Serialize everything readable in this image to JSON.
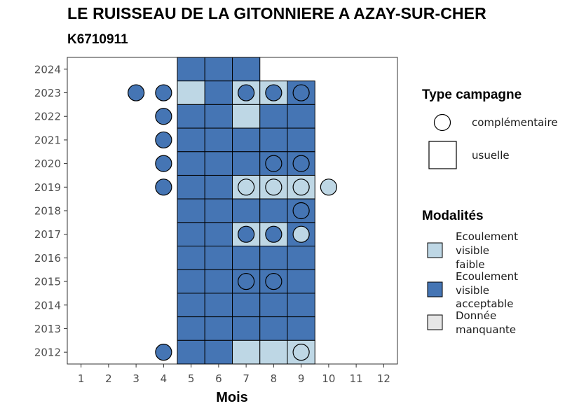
{
  "title": "LE RUISSEAU DE LA GITONNIERE A AZAY-SUR-CHER",
  "subtitle": "K6710911",
  "colors": {
    "faible": "#bed7e5",
    "acceptable": "#4575b4",
    "manquante": "#e6e6e6"
  },
  "chart_data": {
    "type": "heatmap",
    "title": "LE RUISSEAU DE LA GITONNIERE A AZAY-SUR-CHER",
    "subtitle": "K6710911",
    "xlabel": "Mois",
    "ylabel": "",
    "x_ticks": [
      "1",
      "2",
      "3",
      "4",
      "5",
      "6",
      "7",
      "8",
      "9",
      "10",
      "11",
      "12"
    ],
    "y_ticks": [
      "2012",
      "2013",
      "2014",
      "2015",
      "2016",
      "2017",
      "2018",
      "2019",
      "2020",
      "2021",
      "2022",
      "2023",
      "2024"
    ],
    "xlim": [
      0.5,
      12.5
    ],
    "ylim": [
      2011.5,
      2024.5
    ],
    "grid": false,
    "legend_position": "right",
    "legend_shape": {
      "title": "Type campagne",
      "items": [
        {
          "label": "complémentaire",
          "shape": "circle"
        },
        {
          "label": "usuelle",
          "shape": "square"
        }
      ]
    },
    "legend_color": {
      "title": "Modalités",
      "items": [
        {
          "label_lines": [
            "Ecoulement",
            "visible",
            "faible"
          ],
          "category": "faible"
        },
        {
          "label_lines": [
            "Ecoulement",
            "visible",
            "acceptable"
          ],
          "category": "acceptable"
        },
        {
          "label_lines": [
            "Donnée",
            "manquante"
          ],
          "category": "manquante"
        }
      ]
    },
    "usuelle": [
      {
        "year": 2024,
        "month": 5,
        "value": "acceptable"
      },
      {
        "year": 2024,
        "month": 6,
        "value": "acceptable"
      },
      {
        "year": 2024,
        "month": 7,
        "value": "acceptable"
      },
      {
        "year": 2023,
        "month": 5,
        "value": "faible"
      },
      {
        "year": 2023,
        "month": 6,
        "value": "acceptable"
      },
      {
        "year": 2023,
        "month": 7,
        "value": "faible"
      },
      {
        "year": 2023,
        "month": 8,
        "value": "faible"
      },
      {
        "year": 2023,
        "month": 9,
        "value": "acceptable"
      },
      {
        "year": 2022,
        "month": 5,
        "value": "acceptable"
      },
      {
        "year": 2022,
        "month": 6,
        "value": "acceptable"
      },
      {
        "year": 2022,
        "month": 7,
        "value": "faible"
      },
      {
        "year": 2022,
        "month": 8,
        "value": "acceptable"
      },
      {
        "year": 2022,
        "month": 9,
        "value": "acceptable"
      },
      {
        "year": 2021,
        "month": 5,
        "value": "acceptable"
      },
      {
        "year": 2021,
        "month": 6,
        "value": "acceptable"
      },
      {
        "year": 2021,
        "month": 7,
        "value": "acceptable"
      },
      {
        "year": 2021,
        "month": 8,
        "value": "acceptable"
      },
      {
        "year": 2021,
        "month": 9,
        "value": "acceptable"
      },
      {
        "year": 2020,
        "month": 5,
        "value": "acceptable"
      },
      {
        "year": 2020,
        "month": 6,
        "value": "acceptable"
      },
      {
        "year": 2020,
        "month": 7,
        "value": "acceptable"
      },
      {
        "year": 2020,
        "month": 8,
        "value": "acceptable"
      },
      {
        "year": 2020,
        "month": 9,
        "value": "acceptable"
      },
      {
        "year": 2019,
        "month": 5,
        "value": "acceptable"
      },
      {
        "year": 2019,
        "month": 6,
        "value": "acceptable"
      },
      {
        "year": 2019,
        "month": 7,
        "value": "faible"
      },
      {
        "year": 2019,
        "month": 8,
        "value": "faible"
      },
      {
        "year": 2019,
        "month": 9,
        "value": "faible"
      },
      {
        "year": 2018,
        "month": 5,
        "value": "acceptable"
      },
      {
        "year": 2018,
        "month": 6,
        "value": "acceptable"
      },
      {
        "year": 2018,
        "month": 7,
        "value": "acceptable"
      },
      {
        "year": 2018,
        "month": 8,
        "value": "acceptable"
      },
      {
        "year": 2018,
        "month": 9,
        "value": "acceptable"
      },
      {
        "year": 2017,
        "month": 5,
        "value": "acceptable"
      },
      {
        "year": 2017,
        "month": 6,
        "value": "acceptable"
      },
      {
        "year": 2017,
        "month": 7,
        "value": "faible"
      },
      {
        "year": 2017,
        "month": 8,
        "value": "faible"
      },
      {
        "year": 2017,
        "month": 9,
        "value": "acceptable"
      },
      {
        "year": 2016,
        "month": 5,
        "value": "acceptable"
      },
      {
        "year": 2016,
        "month": 6,
        "value": "acceptable"
      },
      {
        "year": 2016,
        "month": 7,
        "value": "acceptable"
      },
      {
        "year": 2016,
        "month": 8,
        "value": "acceptable"
      },
      {
        "year": 2016,
        "month": 9,
        "value": "acceptable"
      },
      {
        "year": 2015,
        "month": 5,
        "value": "acceptable"
      },
      {
        "year": 2015,
        "month": 6,
        "value": "acceptable"
      },
      {
        "year": 2015,
        "month": 7,
        "value": "acceptable"
      },
      {
        "year": 2015,
        "month": 8,
        "value": "acceptable"
      },
      {
        "year": 2015,
        "month": 9,
        "value": "acceptable"
      },
      {
        "year": 2014,
        "month": 5,
        "value": "acceptable"
      },
      {
        "year": 2014,
        "month": 6,
        "value": "acceptable"
      },
      {
        "year": 2014,
        "month": 7,
        "value": "acceptable"
      },
      {
        "year": 2014,
        "month": 8,
        "value": "acceptable"
      },
      {
        "year": 2014,
        "month": 9,
        "value": "acceptable"
      },
      {
        "year": 2013,
        "month": 5,
        "value": "acceptable"
      },
      {
        "year": 2013,
        "month": 6,
        "value": "acceptable"
      },
      {
        "year": 2013,
        "month": 7,
        "value": "acceptable"
      },
      {
        "year": 2013,
        "month": 8,
        "value": "acceptable"
      },
      {
        "year": 2013,
        "month": 9,
        "value": "acceptable"
      },
      {
        "year": 2012,
        "month": 5,
        "value": "acceptable"
      },
      {
        "year": 2012,
        "month": 6,
        "value": "acceptable"
      },
      {
        "year": 2012,
        "month": 7,
        "value": "faible"
      },
      {
        "year": 2012,
        "month": 8,
        "value": "faible"
      },
      {
        "year": 2012,
        "month": 9,
        "value": "faible"
      }
    ],
    "complementaire": [
      {
        "year": 2023,
        "month": 3,
        "value": "acceptable"
      },
      {
        "year": 2023,
        "month": 4,
        "value": "acceptable"
      },
      {
        "year": 2023,
        "month": 7,
        "value": "acceptable"
      },
      {
        "year": 2023,
        "month": 8,
        "value": "acceptable"
      },
      {
        "year": 2023,
        "month": 9,
        "value": "acceptable"
      },
      {
        "year": 2022,
        "month": 4,
        "value": "acceptable"
      },
      {
        "year": 2021,
        "month": 4,
        "value": "acceptable"
      },
      {
        "year": 2020,
        "month": 4,
        "value": "acceptable"
      },
      {
        "year": 2020,
        "month": 8,
        "value": "acceptable"
      },
      {
        "year": 2020,
        "month": 9,
        "value": "acceptable"
      },
      {
        "year": 2019,
        "month": 4,
        "value": "acceptable"
      },
      {
        "year": 2019,
        "month": 7,
        "value": "faible"
      },
      {
        "year": 2019,
        "month": 8,
        "value": "faible"
      },
      {
        "year": 2019,
        "month": 9,
        "value": "faible"
      },
      {
        "year": 2019,
        "month": 10,
        "value": "faible"
      },
      {
        "year": 2018,
        "month": 9,
        "value": "acceptable"
      },
      {
        "year": 2017,
        "month": 7,
        "value": "acceptable"
      },
      {
        "year": 2017,
        "month": 8,
        "value": "acceptable"
      },
      {
        "year": 2017,
        "month": 9,
        "value": "faible"
      },
      {
        "year": 2015,
        "month": 7,
        "value": "acceptable"
      },
      {
        "year": 2015,
        "month": 8,
        "value": "acceptable"
      },
      {
        "year": 2012,
        "month": 4,
        "value": "acceptable"
      },
      {
        "year": 2012,
        "month": 9,
        "value": "faible"
      }
    ]
  }
}
